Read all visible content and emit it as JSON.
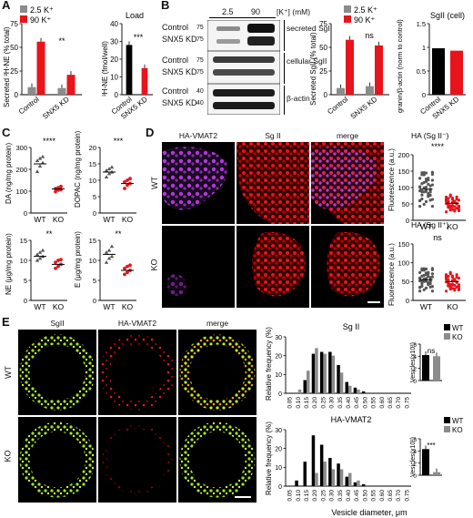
{
  "figure": {
    "panels": {
      "A": "A",
      "B": "B",
      "C": "C",
      "D": "D",
      "E": "E"
    },
    "panelA": {
      "legend": [
        "2.5 K⁺",
        "90 K⁺"
      ],
      "ylabel1": "Secreted ³H-NE (% total)",
      "ylabel2": "³H-NE (fmol/well)",
      "load_title": "Load",
      "xticks": [
        "Control",
        "SNX5 KD"
      ],
      "sig1": "**",
      "sig2": "***"
    },
    "panelB": {
      "conc_header": "[K⁺] (mM)",
      "conc_values": [
        "2.5",
        "90"
      ],
      "row_labels": [
        "Control",
        "SNX5 KD",
        "Control",
        "SNX5 KD",
        "Control",
        "SNX5 KD"
      ],
      "blot_labels": [
        "secreted SgII",
        "cellular SgII",
        "β-actin"
      ],
      "mw_markers": [
        "75",
        "75",
        "75",
        "75",
        "40",
        "40"
      ],
      "legend": [
        "2.5 K⁺",
        "90 K⁺"
      ],
      "ylabel1": "Secreted SgII (% total)",
      "ylabel2": "granin/β-actin (norm to control)",
      "title2": "SgII (cell)",
      "sig": "ns"
    },
    "panelC": {
      "ylabels": [
        "DA (ng/mg protein)",
        "DOPAC (ng/mg protein)",
        "NE (μg/mg protein)",
        "E (μg/mg protein)"
      ],
      "sigs": [
        "****",
        "***",
        "**",
        "**"
      ],
      "xticks": [
        "WT",
        "KO"
      ]
    },
    "panelD": {
      "col_titles": [
        "HA-VMAT2",
        "Sg II",
        "merge"
      ],
      "row_labels": [
        "WT",
        "KO"
      ],
      "plot1_title": "HA (Sg II⁻)",
      "plot2_title": "HA (Sg II⁺)",
      "ylabel": "Fluorescence (a.u.)",
      "sigs": [
        "****",
        "ns"
      ],
      "xticks": [
        "WT",
        "KO"
      ]
    },
    "panelE": {
      "col_titles": [
        "SgII",
        "HA-VMAT2",
        "merge"
      ],
      "row_labels": [
        "WT",
        "KO"
      ],
      "hist_titles": [
        "Sg II",
        "HA-VMAT2"
      ],
      "ylabel": "Relative frequency (%)",
      "xlabel": "Vesicle diameter, μm",
      "xticks": [
        "0.05",
        "0.10",
        "0.15",
        "0.20",
        "0.25",
        "0.30",
        "0.35",
        "0.40",
        "0.45",
        "0.50",
        "0.55",
        "0.60",
        "0.65",
        "0.70",
        "0.75"
      ],
      "legend": [
        "WT",
        "KO"
      ],
      "inset_ylabel": "Vesicles(x10²)",
      "inset_sigs": [
        "ns",
        "***"
      ]
    }
  },
  "colors": {
    "gray": "#8c8c8c",
    "red": "#e8141b",
    "black": "#000000",
    "magenta": "#b13ad8",
    "green": "#9ee81e"
  },
  "chart_data": [
    {
      "type": "bar",
      "id": "A1",
      "categories": [
        "Control",
        "SNX5 KD"
      ],
      "series": [
        {
          "name": "2.5 K⁺",
          "values": [
            8,
            7
          ]
        },
        {
          "name": "90 K⁺",
          "values": [
            56,
            21
          ]
        }
      ],
      "ylabel": "Secreted ³H-NE (% total)",
      "ylim": [
        0,
        75
      ],
      "yticks": [
        0,
        25,
        50,
        75
      ]
    },
    {
      "type": "bar",
      "id": "A2",
      "categories": [
        "Control",
        "SNX5 KD"
      ],
      "values": [
        28,
        15
      ],
      "title": "Load",
      "ylabel": "³H-NE (fmol/well)",
      "ylim": [
        0,
        40
      ],
      "yticks": [
        0,
        10,
        20,
        30,
        40
      ]
    },
    {
      "type": "bar",
      "id": "B1",
      "categories": [
        "Control",
        "SNX5 KD"
      ],
      "series": [
        {
          "name": "2.5 K⁺",
          "values": [
            7,
            9
          ]
        },
        {
          "name": "90 K⁺",
          "values": [
            58,
            52
          ]
        }
      ],
      "ylabel": "Secreted SgII (% total)",
      "ylim": [
        0,
        75
      ],
      "yticks": [
        0,
        25,
        50,
        75
      ]
    },
    {
      "type": "bar",
      "id": "B2",
      "categories": [
        "Control",
        "SNX5 KD"
      ],
      "values": [
        0.98,
        0.93
      ],
      "title": "SgII (cell)",
      "ylabel": "granin/β-actin (norm to control)",
      "ylim": [
        0,
        1.5
      ],
      "yticks": [
        0.0,
        0.5,
        1.0,
        1.5
      ]
    },
    {
      "type": "scatter",
      "id": "C1",
      "categories": [
        "WT",
        "KO"
      ],
      "ylabel": "DA (ng/mg protein)",
      "ylim": [
        0,
        300
      ],
      "yticks": [
        0,
        100,
        200,
        300
      ],
      "means": [
        225,
        110
      ],
      "points": [
        [
          190,
          215,
          230,
          240,
          250,
          258
        ],
        [
          98,
          105,
          108,
          112,
          116,
          122
        ]
      ]
    },
    {
      "type": "scatter",
      "id": "C2",
      "categories": [
        "WT",
        "KO"
      ],
      "ylabel": "DOPAC (ng/mg protein)",
      "ylim": [
        0,
        20
      ],
      "yticks": [
        0,
        5,
        10,
        15,
        20
      ],
      "means": [
        12.5,
        9
      ],
      "points": [
        [
          11,
          12,
          12.5,
          13,
          13.5,
          14
        ],
        [
          7.5,
          8.5,
          9,
          9.5,
          10,
          10.5
        ]
      ]
    },
    {
      "type": "scatter",
      "id": "C3",
      "categories": [
        "WT",
        "KO"
      ],
      "ylabel": "NE (μg/mg protein)",
      "ylim": [
        0,
        15
      ],
      "yticks": [
        0,
        5,
        10,
        15
      ],
      "means": [
        11,
        9
      ],
      "points": [
        [
          10,
          10.5,
          11,
          11.5,
          12,
          12.5
        ],
        [
          8,
          8.5,
          9,
          9.5,
          10,
          10.2
        ]
      ]
    },
    {
      "type": "scatter",
      "id": "C4",
      "categories": [
        "WT",
        "KO"
      ],
      "ylabel": "E (μg/mg protein)",
      "ylim": [
        0,
        15
      ],
      "yticks": [
        0,
        5,
        10,
        15
      ],
      "means": [
        11.5,
        7.5
      ],
      "points": [
        [
          9.5,
          10.5,
          11,
          12,
          12.5,
          13.5
        ],
        [
          6.5,
          7,
          7.5,
          8,
          8.5,
          8.8
        ]
      ]
    },
    {
      "type": "scatter",
      "id": "D1",
      "categories": [
        "WT",
        "KO"
      ],
      "title": "HA (Sg II⁻)",
      "ylabel": "Fluorescence (a.u.)",
      "ylim": [
        0,
        200
      ],
      "yticks": [
        0,
        50,
        100,
        150,
        200
      ],
      "means": [
        95,
        52
      ]
    },
    {
      "type": "scatter",
      "id": "D2",
      "categories": [
        "WT",
        "KO"
      ],
      "title": "HA (Sg II⁺)",
      "ylabel": "Fluorescence (a.u.)",
      "ylim": [
        0,
        150
      ],
      "yticks": [
        0,
        50,
        100,
        150
      ],
      "means": [
        55,
        50
      ]
    },
    {
      "type": "bar",
      "id": "E1",
      "title": "Sg II",
      "ylabel": "Relative frequency (%)",
      "xlabel": "Vesicle diameter, μm",
      "ylim": [
        0,
        30
      ],
      "yticks": [
        0,
        10,
        20,
        30
      ],
      "categories": [
        "0.05",
        "0.10",
        "0.15",
        "0.20",
        "0.25",
        "0.30",
        "0.35",
        "0.40",
        "0.45",
        "0.50",
        "0.55",
        "0.60",
        "0.65",
        "0.70",
        "0.75"
      ],
      "series": [
        {
          "name": "WT",
          "values": [
            0,
            0,
            7,
            21,
            22,
            22,
            15,
            6,
            3,
            1,
            0,
            0,
            0,
            0,
            0
          ]
        },
        {
          "name": "KO",
          "values": [
            0,
            2,
            12,
            24,
            21,
            20,
            11,
            4,
            2,
            0,
            0,
            0,
            0,
            0,
            0
          ]
        }
      ]
    },
    {
      "type": "bar",
      "id": "E2",
      "title": "HA-VMAT2",
      "ylabel": "Relative frequency (%)",
      "xlabel": "Vesicle diameter, μm",
      "ylim": [
        0,
        30
      ],
      "yticks": [
        0,
        10,
        20,
        30
      ],
      "categories": [
        "0.05",
        "0.10",
        "0.15",
        "0.20",
        "0.25",
        "0.30",
        "0.35",
        "0.40",
        "0.45",
        "0.50",
        "0.55",
        "0.60",
        "0.65",
        "0.70",
        "0.75"
      ],
      "series": [
        {
          "name": "WT",
          "values": [
            0,
            3,
            13,
            27,
            22,
            15,
            12,
            5,
            2,
            1,
            0,
            0,
            0,
            0,
            0
          ]
        },
        {
          "name": "KO",
          "values": [
            0,
            0,
            0,
            7,
            13,
            9,
            9,
            7,
            3,
            0,
            0,
            0,
            0,
            0,
            0
          ]
        }
      ]
    },
    {
      "type": "bar",
      "id": "E3",
      "categories": [
        "WT",
        "KO"
      ],
      "values": [
        4.2,
        4.0
      ],
      "ylabel": "Vesicles(x10²)",
      "ylim": [
        0,
        6
      ],
      "yticks": [
        0,
        2,
        4,
        6
      ]
    },
    {
      "type": "bar",
      "id": "E4",
      "categories": [
        "WT",
        "KO"
      ],
      "values": [
        4.3,
        0.5
      ],
      "ylabel": "Vesicles(x10²)",
      "ylim": [
        0,
        6
      ],
      "yticks": [
        0,
        2,
        4,
        6
      ]
    }
  ]
}
